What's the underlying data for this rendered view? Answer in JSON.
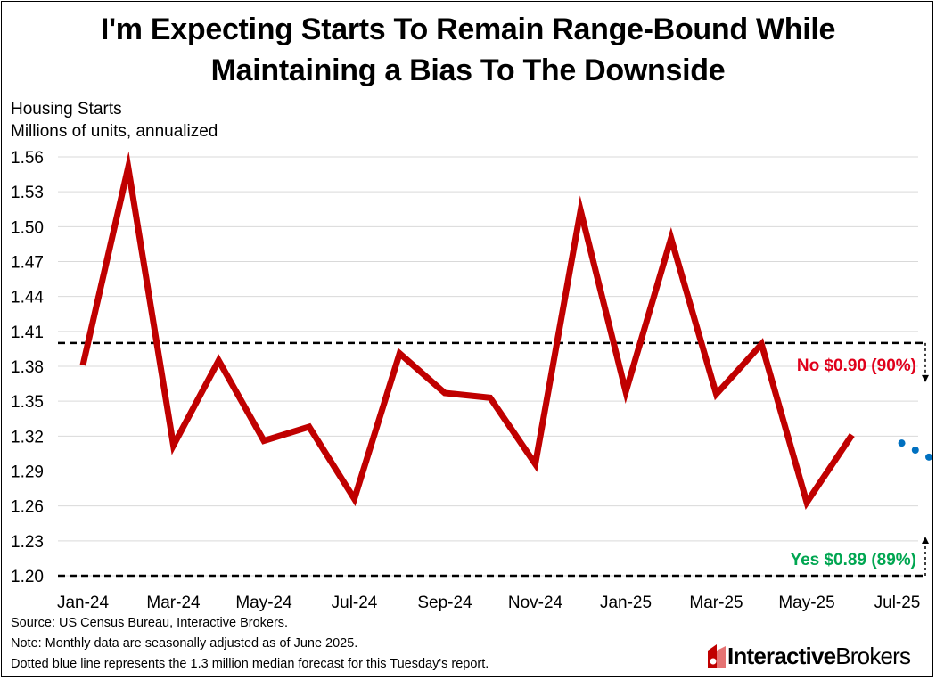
{
  "title_line1": "I'm Expecting Starts To Remain Range-Bound While",
  "title_line2": "Maintaining a Bias To The Downside",
  "ylabel_line1": "Housing Starts",
  "ylabel_line2": "Millions of units, annualized",
  "footnotes": [
    "Source: US Census Bureau, Interactive Brokers.",
    "Note: Monthly data are seasonally adjusted as of June 2025.",
    "Dotted blue line represents the 1.3 million median forecast for this Tuesday's report."
  ],
  "logo": {
    "bold": "Interactive",
    "light": "Brokers",
    "color": "#c00000"
  },
  "chart_data": {
    "type": "line",
    "x": [
      "Jan-24",
      "Feb-24",
      "Mar-24",
      "Apr-24",
      "May-24",
      "Jun-24",
      "Jul-24",
      "Aug-24",
      "Sep-24",
      "Oct-24",
      "Nov-24",
      "Dec-24",
      "Jan-25",
      "Feb-25",
      "Mar-25",
      "Apr-25",
      "May-25",
      "Jun-25"
    ],
    "tick_labels": [
      "Jan-24",
      "Mar-24",
      "May-24",
      "Jul-24",
      "Sep-24",
      "Nov-24",
      "Jan-25",
      "Mar-25",
      "May-25",
      "Jul-25"
    ],
    "y_ticks": [
      "1.56",
      "1.53",
      "1.50",
      "1.47",
      "1.44",
      "1.41",
      "1.38",
      "1.35",
      "1.32",
      "1.29",
      "1.26",
      "1.23",
      "1.20"
    ],
    "ylim": [
      1.2,
      1.56
    ],
    "grid": true,
    "series": [
      {
        "values": [
          1.381,
          1.551,
          1.312,
          1.385,
          1.316,
          1.328,
          1.266,
          1.391,
          1.357,
          1.353,
          1.296,
          1.514,
          1.358,
          1.49,
          1.356,
          1.399,
          1.263,
          1.321
        ],
        "color": "#c00000",
        "style": "solid"
      },
      {
        "x": [
          18.1,
          18.4,
          18.7
        ],
        "values": [
          1.314,
          1.308,
          1.302
        ],
        "color": "#0070c0",
        "style": "dotted"
      }
    ],
    "thresholds": [
      {
        "value": 1.4,
        "label": "No $0.90 (90%)",
        "color": "#e0001b",
        "direction": "down"
      },
      {
        "value": 1.2,
        "label": "Yes $0.89 (89%)",
        "color": "#00a651",
        "direction": "up"
      }
    ]
  }
}
